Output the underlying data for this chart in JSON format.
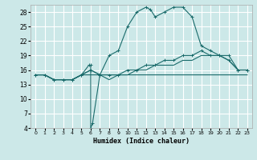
{
  "xlabel": "Humidex (Indice chaleur)",
  "background_color": "#cce8e8",
  "grid_color": "#ffffff",
  "line_color": "#1a6b6b",
  "xlim": [
    -0.5,
    23.5
  ],
  "ylim": [
    4,
    29.5
  ],
  "yticks": [
    4,
    7,
    10,
    13,
    16,
    19,
    22,
    25,
    28
  ],
  "xticks": [
    0,
    1,
    2,
    3,
    4,
    5,
    6,
    7,
    8,
    9,
    10,
    11,
    12,
    13,
    14,
    15,
    16,
    17,
    18,
    19,
    20,
    21,
    22,
    23
  ],
  "curve_main_x": [
    0,
    1,
    2,
    3,
    4,
    5,
    5.8,
    6.0,
    6.0,
    6.2,
    7,
    8,
    9,
    10,
    11,
    12,
    12.5,
    13,
    14,
    15,
    16,
    17,
    18,
    19,
    20,
    21,
    22,
    23
  ],
  "curve_main_y": [
    15,
    15,
    14,
    14,
    14,
    15,
    17,
    17,
    4,
    5,
    15,
    19,
    20,
    25,
    28,
    29,
    28.5,
    27,
    28,
    29,
    29,
    27,
    21,
    20,
    19,
    18,
    16,
    16
  ],
  "curve_diag1_x": [
    0,
    1,
    2,
    3,
    4,
    5,
    6,
    7,
    8,
    9,
    10,
    11,
    12,
    13,
    14,
    15,
    16,
    17,
    18,
    19,
    20,
    21,
    22,
    23
  ],
  "curve_diag1_y": [
    15,
    15,
    14,
    14,
    14,
    15,
    16,
    15,
    15,
    15,
    16,
    16,
    17,
    17,
    18,
    18,
    19,
    19,
    20,
    19,
    19,
    19,
    16,
    16
  ],
  "curve_diag2_x": [
    0,
    1,
    2,
    3,
    4,
    5,
    6,
    7,
    8,
    9,
    10,
    11,
    12,
    13,
    14,
    15,
    16,
    17,
    18,
    19,
    20,
    21,
    22,
    23
  ],
  "curve_diag2_y": [
    15,
    15,
    14,
    14,
    14,
    15,
    16,
    15,
    14,
    15,
    15,
    16,
    16,
    17,
    17,
    17,
    18,
    18,
    19,
    19,
    19,
    18,
    16,
    16
  ],
  "curve_flat_x": [
    0,
    1,
    2,
    3,
    4,
    5,
    6,
    7,
    8,
    9,
    10,
    11,
    12,
    13,
    14,
    15,
    16,
    17,
    18,
    19,
    20,
    21,
    22,
    23
  ],
  "curve_flat_y": [
    15,
    15,
    14,
    14,
    14,
    15,
    15,
    15,
    15,
    15,
    15,
    15,
    15,
    15,
    15,
    15,
    15,
    15,
    15,
    15,
    15,
    15,
    15,
    15
  ]
}
